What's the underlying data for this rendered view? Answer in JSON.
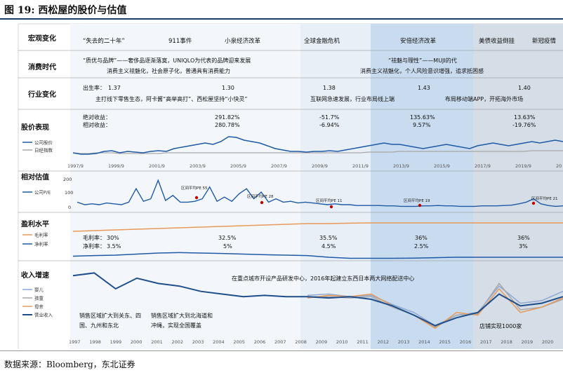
{
  "figure_title": "图 19: 西松屋的股价与估值",
  "source": "数据来源：Bloomberg，东北证券",
  "colors": {
    "company_line": "#1f5aa6",
    "nikkei_line": "#a8a8a8",
    "gross_margin": "#e89a5a",
    "net_margin": "#1f5aa6",
    "row_label": "#1f3c66",
    "bg_light": "#dde8f3",
    "bg_mid": "#c2d6ea",
    "bg_dark": "#d0d8e2",
    "peak_marker": "#c00000"
  },
  "rows": {
    "macro": {
      "label": "宏观变化",
      "events": [
        "“失去的二十年”",
        "911事件",
        "小泉经济改革",
        "全球金融危机",
        "安倍经济改革",
        "美债收益倒挂",
        "新冠疫情"
      ]
    },
    "consumption": {
      "label": "消费时代",
      "texts": [
        "“质优与品牌”——奢侈品逐渐落寞，UNIQLO为代表的品牌迎来发展",
        "“祛魅与理性”——MUJI的代",
        "消费主义祛魅化，社会原子化，普通具有消费能力",
        "消费主义祛魅化，个人风险意识增强，追求抵困感"
      ]
    },
    "industry": {
      "label": "行业变化",
      "birth_rate_label": "出生率：",
      "birth_rates": [
        "1.37",
        "1.30",
        "1.38",
        "1.43",
        "1.40"
      ],
      "texts": [
        "主打线下零售生态，阿卡酱“高举高打”、西松屋坚持“小快灵”",
        "互联网急速发展，行业布局线上端",
        "布局移动端APP，开拓海外市场"
      ]
    },
    "stock": {
      "label": "股价表现",
      "abs_label": "绝对收益：",
      "rel_label": "相对收益：",
      "abs_returns": [
        "291.82%",
        "-51.7%",
        "135.63%",
        "13.63%"
      ],
      "rel_returns": [
        "280.78%",
        "-6.94%",
        "9.57%",
        "-19.76%"
      ],
      "legend": [
        "公司股价",
        "日经指数"
      ],
      "x_ticks": [
        "1997/9",
        "1999/9",
        "2001/9",
        "2003/9",
        "2005/9",
        "2007/9",
        "2009/9",
        "2011/9",
        "2013/9",
        "2015/9",
        "2017/9",
        "2019/9",
        "20"
      ]
    },
    "valuation": {
      "label": "相对估值",
      "legend": [
        "公司P/E"
      ],
      "y_ticks": [
        "200",
        "100",
        "0"
      ],
      "pe_labels": [
        "区间平均PE 55",
        "区间平均PE 28",
        "区间平均PE 11",
        "区间平均PE 19",
        "区间平均PE 21"
      ]
    },
    "profit": {
      "label": "盈利水平",
      "legend": [
        "毛利率",
        "净利率"
      ],
      "gross_label": "毛利率：",
      "net_label": "净利率：",
      "gross_values": [
        "30%",
        "32.5%",
        "35.5%",
        "36%",
        "36%"
      ],
      "net_values": [
        "3.5%",
        "5%",
        "4.5%",
        "2.5%",
        "3%"
      ]
    },
    "revenue": {
      "label": "收入增速",
      "legend": [
        "婴儿",
        "孩童",
        "母亲",
        "营业收入"
      ],
      "notes": [
        "在重点城市开设产品研发中心，2016年起建立东西日本两大网络配送中心",
        "销售区域扩大到关东、四国、九州和东北",
        "销售区域扩大到北海道和冲绳，实现全国覆盖",
        "店铺实现1000家"
      ],
      "years": [
        "1997",
        "1998",
        "1999",
        "2000",
        "2001",
        "2002",
        "2003",
        "2004",
        "2005",
        "2006",
        "2007",
        "2008",
        "2009",
        "2010",
        "2011",
        "2012",
        "2013",
        "2014",
        "2015",
        "2016",
        "2017",
        "2018",
        "2019",
        "2020"
      ]
    }
  },
  "chart_data": [
    {
      "type": "line",
      "title": "股价表现",
      "series": [
        {
          "name": "公司股价",
          "values": [
            10,
            8,
            8,
            9,
            12,
            13,
            10,
            12,
            11,
            10,
            12,
            13,
            12,
            16,
            18,
            20,
            22,
            24,
            22,
            26,
            33,
            32,
            28,
            26,
            24,
            20,
            16,
            14,
            12,
            12,
            11,
            12,
            12,
            13,
            12,
            14,
            16,
            18,
            20,
            22,
            24,
            22,
            22,
            20,
            18,
            16,
            18,
            20,
            22,
            20,
            18,
            16,
            20,
            22,
            24,
            22,
            20,
            22,
            24,
            26,
            24,
            26,
            28,
            26
          ]
        },
        {
          "name": "日经指数",
          "values": [
            10,
            9,
            9,
            10,
            10,
            10,
            9,
            9,
            9,
            9,
            9,
            9,
            10,
            10,
            10,
            10,
            10,
            10,
            10,
            10,
            10,
            10,
            10,
            10,
            10,
            10,
            10,
            10,
            10,
            10,
            10,
            10,
            10,
            10,
            10,
            10,
            10,
            10,
            11,
            11,
            11,
            11,
            12,
            12,
            12,
            12,
            12,
            12,
            12,
            12,
            12,
            12,
            12,
            12,
            12,
            12,
            12,
            12,
            12,
            13,
            13,
            13,
            13,
            13
          ]
        }
      ],
      "x_ticks": [
        "1997/9",
        "1999/9",
        "2001/9",
        "2003/9",
        "2005/9",
        "2007/9",
        "2009/9",
        "2011/9",
        "2013/9",
        "2015/9",
        "2017/9",
        "2019/9",
        "20"
      ]
    },
    {
      "type": "line",
      "title": "相对估值",
      "ylim": [
        0,
        200
      ],
      "series": [
        {
          "name": "公司P/E",
          "values": [
            40,
            25,
            30,
            25,
            35,
            30,
            25,
            40,
            120,
            45,
            60,
            170,
            50,
            80,
            40,
            40,
            45,
            60,
            130,
            45,
            70,
            45,
            90,
            120,
            60,
            100,
            40,
            60,
            40,
            45,
            35,
            40,
            35,
            30,
            25,
            30,
            25,
            25,
            20,
            20,
            20,
            20,
            18,
            18,
            15,
            15,
            15,
            18,
            18,
            20,
            18,
            18,
            15,
            15,
            15,
            18,
            18,
            18,
            20,
            22,
            30,
            40,
            60,
            30,
            20,
            15,
            18
          ]
        }
      ]
    },
    {
      "type": "line",
      "title": "盈利水平",
      "series": [
        {
          "name": "毛利率",
          "values": [
            30,
            30.5,
            31,
            31.5,
            32,
            32.5,
            33,
            33.5,
            34,
            34.5,
            35,
            35.5,
            35.5,
            35.8,
            36,
            36,
            36,
            36,
            36,
            36,
            36,
            36,
            36,
            36
          ]
        },
        {
          "name": "净利率",
          "values": [
            3.5,
            3.8,
            4,
            4.5,
            5,
            5.2,
            5,
            4.8,
            4.5,
            4.2,
            4,
            3.8,
            3,
            2.5,
            2.5,
            2.5,
            2.6,
            2.8,
            3,
            3,
            3,
            3,
            3,
            3
          ]
        }
      ]
    },
    {
      "type": "line",
      "title": "收入增速",
      "x": [
        "1997",
        "1998",
        "1999",
        "2000",
        "2001",
        "2002",
        "2003",
        "2004",
        "2005",
        "2006",
        "2007",
        "2008",
        "2009",
        "2010",
        "2011",
        "2012",
        "2013",
        "2014",
        "2015",
        "2016",
        "2017",
        "2018",
        "2019",
        "2020"
      ],
      "series": [
        {
          "name": "婴儿",
          "values": [
            null,
            null,
            null,
            null,
            null,
            null,
            null,
            null,
            null,
            null,
            null,
            3,
            4,
            2,
            3,
            -4,
            -10,
            -20,
            -12,
            -10,
            10,
            -3,
            -1,
            6
          ]
        },
        {
          "name": "孩童",
          "values": [
            null,
            null,
            null,
            null,
            null,
            null,
            null,
            null,
            null,
            null,
            null,
            2,
            2,
            1,
            2,
            -6,
            -12,
            -21,
            -12,
            -11,
            12,
            -8,
            -6,
            0
          ]
        },
        {
          "name": "母亲",
          "values": [
            null,
            null,
            null,
            null,
            null,
            null,
            null,
            null,
            null,
            null,
            null,
            1,
            3,
            2,
            4,
            -5,
            -12,
            -22,
            -10,
            -12,
            8,
            -10,
            -6,
            1
          ]
        },
        {
          "name": "营业收入",
          "values": [
            18,
            20,
            8,
            16,
            12,
            10,
            6,
            4,
            2,
            3,
            2,
            2,
            1,
            2,
            0,
            -5,
            -12,
            -20,
            -14,
            -10,
            4,
            -5,
            -3,
            2
          ]
        }
      ]
    }
  ]
}
